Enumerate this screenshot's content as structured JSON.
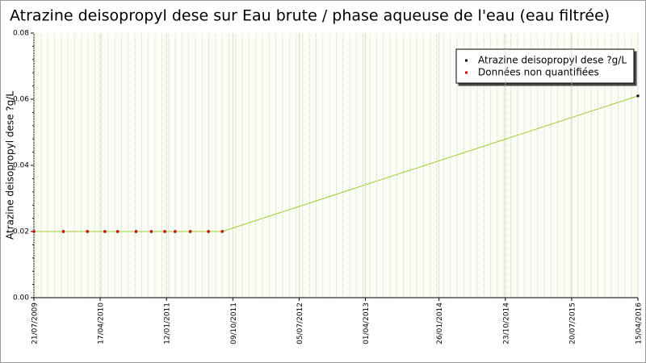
{
  "chart_data": {
    "type": "line",
    "title": "Atrazine deisopropyl dese sur Eau brute / phase aqueuse de l'eau (eau filtrée)",
    "y_label": "Atrazine deisopropyl dese ?g/L",
    "x": [
      "21/07/2009",
      "18/11/2009",
      "24/02/2010",
      "06/05/2010",
      "27/06/2010",
      "10/09/2010",
      "11/11/2010",
      "05/01/2011",
      "16/02/2011",
      "19/04/2011",
      "02/07/2011",
      "27/08/2011",
      "15/04/2016"
    ],
    "series": [
      {
        "name": "Atrazine deisopropyl dese ?g/L",
        "color": "#000000",
        "line_color": "#9acd32",
        "values": [
          0.02,
          0.02,
          0.02,
          0.02,
          0.02,
          0.02,
          0.02,
          0.02,
          0.02,
          0.02,
          0.02,
          0.02,
          0.061
        ]
      },
      {
        "name": "Données non quantifiées",
        "color": "#e00000",
        "values": [
          0.02,
          0.02,
          0.02,
          0.02,
          0.02,
          0.02,
          0.02,
          0.02,
          0.02,
          0.02,
          0.02,
          0.02,
          null
        ]
      }
    ],
    "xlim": [
      "21/07/2009",
      "15/04/2016"
    ],
    "xticks": [
      "21/07/2009",
      "17/04/2010",
      "12/01/2011",
      "09/10/2011",
      "05/07/2012",
      "01/04/2013",
      "26/01/2014",
      "23/10/2014",
      "20/07/2015",
      "15/04/2016"
    ],
    "ylim": [
      0,
      0.08
    ],
    "yticks": [
      {
        "value": 0,
        "label": "0.00"
      },
      {
        "value": 0.02,
        "label": "0.02"
      },
      {
        "value": 0.04,
        "label": "0.04"
      },
      {
        "value": 0.06,
        "label": "0.06"
      },
      {
        "value": 0.08,
        "label": "0.08"
      }
    ],
    "legend": "top-right"
  }
}
